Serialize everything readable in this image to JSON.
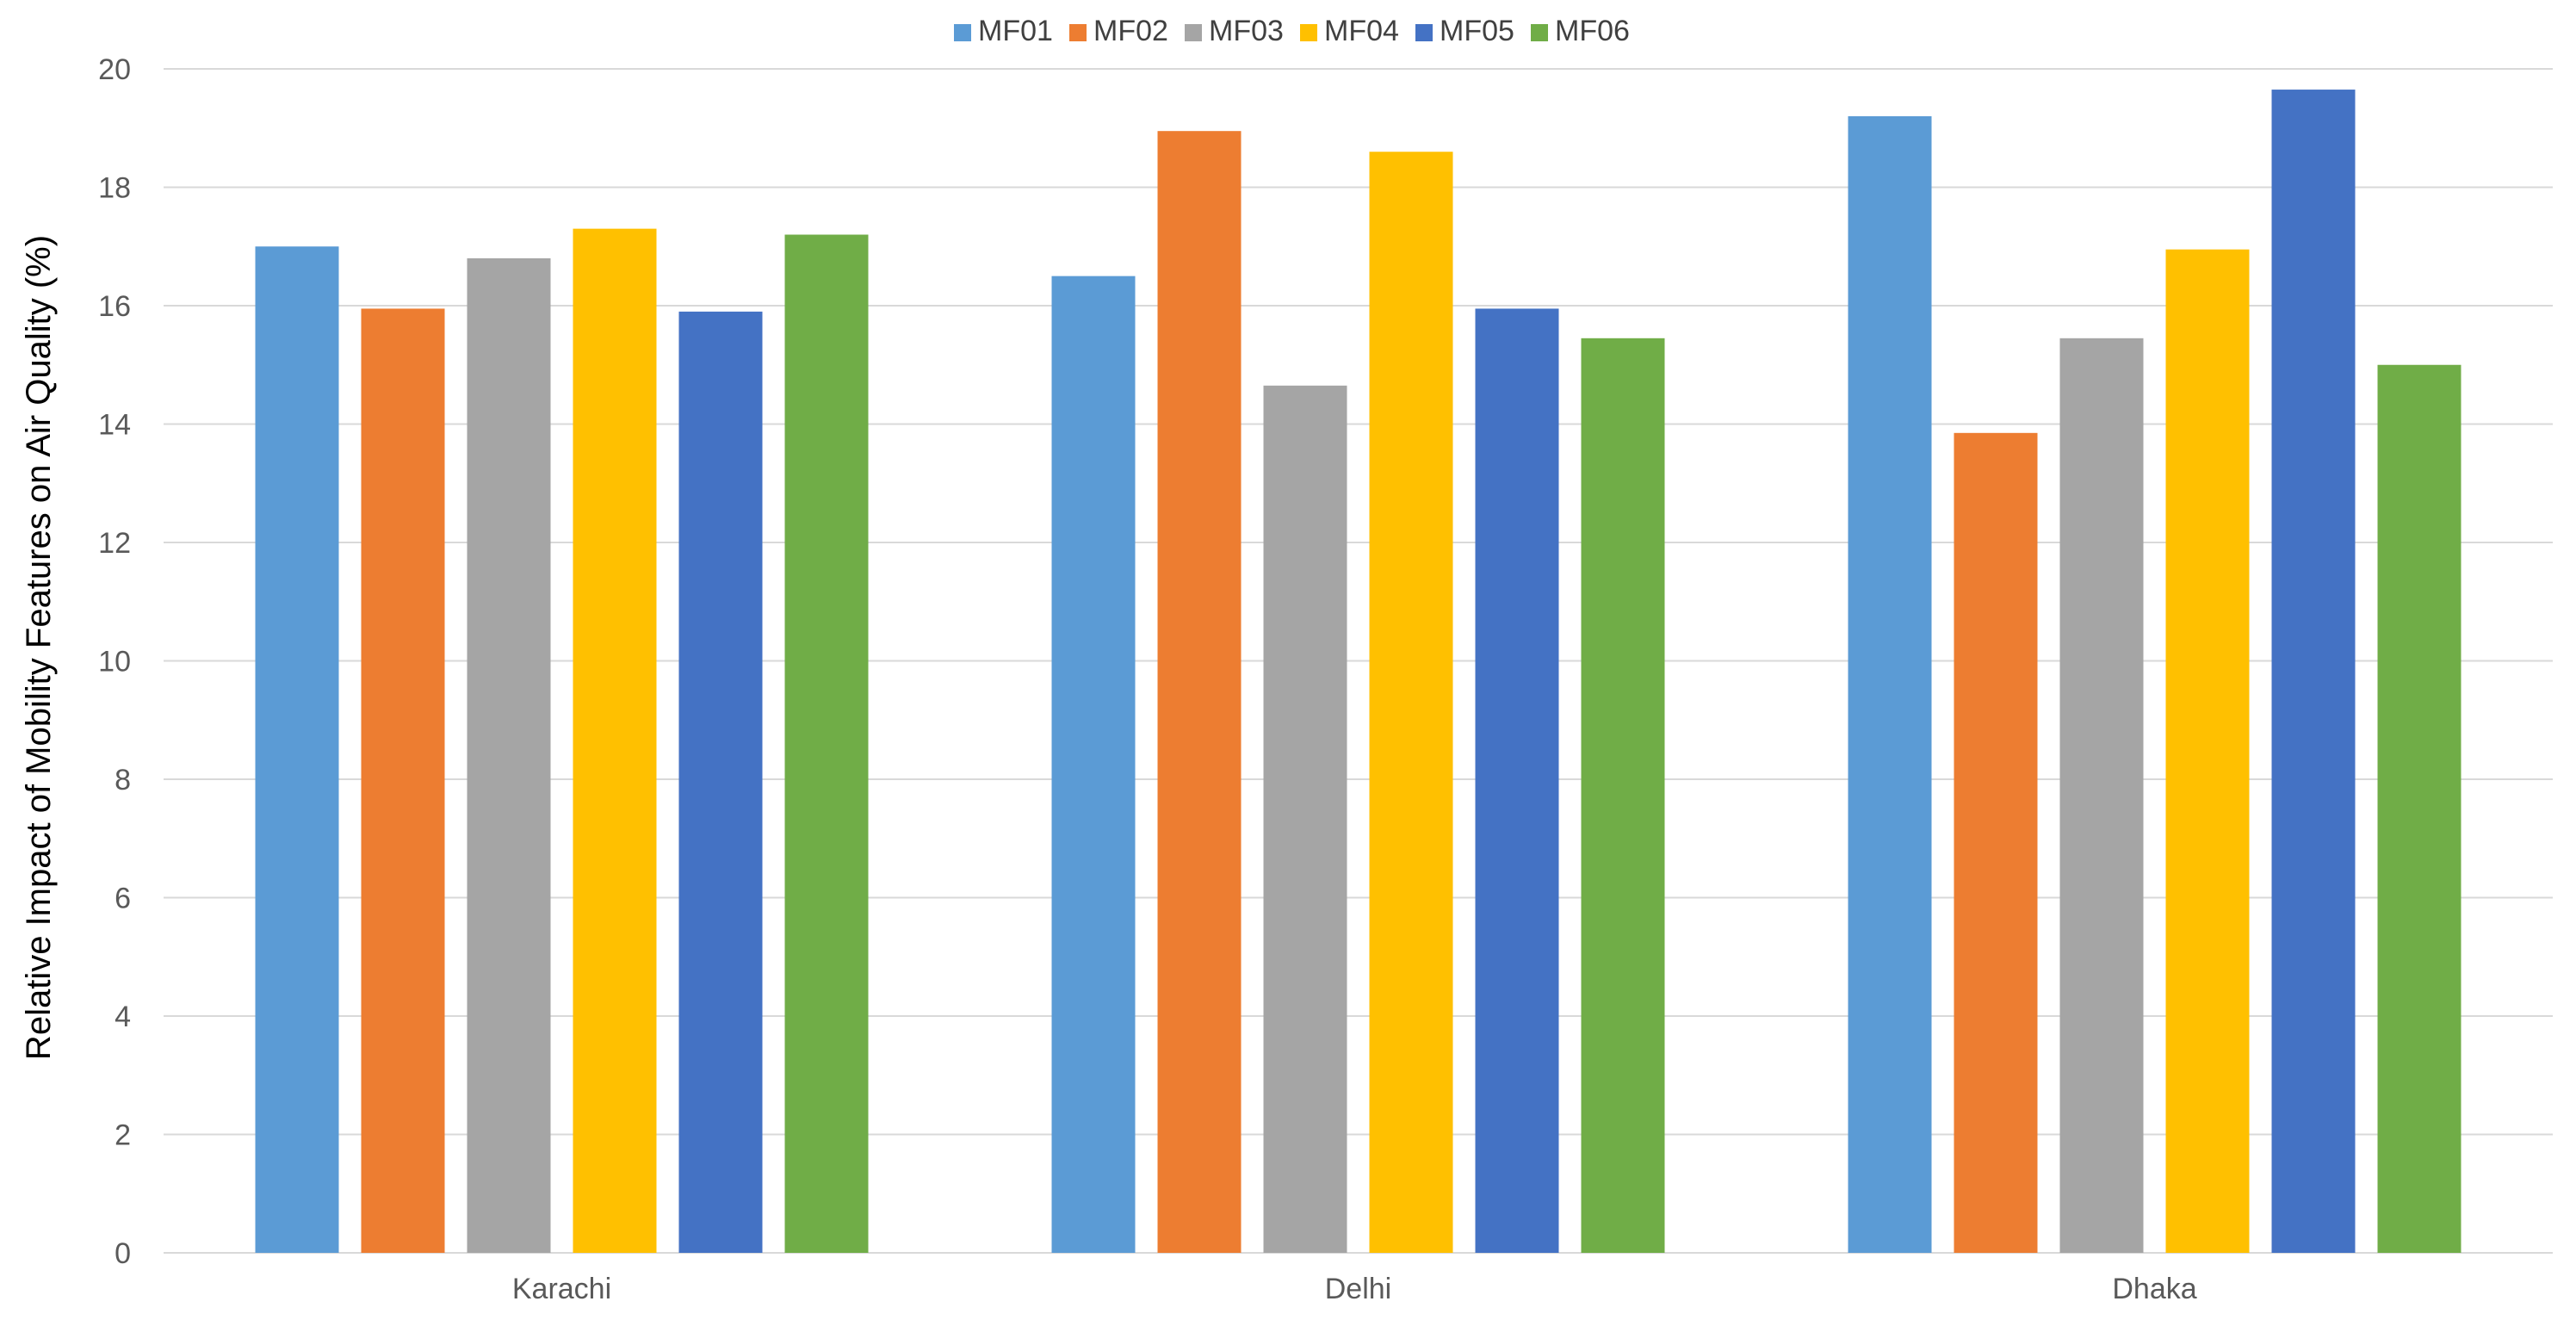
{
  "chart_data": {
    "type": "bar",
    "title": "",
    "xlabel": "",
    "ylabel": "Relative Impact of Mobility Features on Air Quality (%)",
    "categories": [
      "Karachi",
      "Delhi",
      "Dhaka"
    ],
    "ylim": [
      0,
      20
    ],
    "yticks": [
      0,
      2,
      4,
      6,
      8,
      10,
      12,
      14,
      16,
      18,
      20
    ],
    "grid": true,
    "legend_position": "top",
    "series": [
      {
        "name": "MF01",
        "color": "#5b9bd5",
        "values": [
          17.0,
          16.5,
          19.2
        ]
      },
      {
        "name": "MF02",
        "color": "#ed7d31",
        "values": [
          15.95,
          18.95,
          13.85
        ]
      },
      {
        "name": "MF03",
        "color": "#a5a5a5",
        "values": [
          16.8,
          14.65,
          15.45
        ]
      },
      {
        "name": "MF04",
        "color": "#ffc000",
        "values": [
          17.3,
          18.6,
          16.95
        ]
      },
      {
        "name": "MF05",
        "color": "#4472c4",
        "values": [
          15.9,
          15.95,
          19.65
        ]
      },
      {
        "name": "MF06",
        "color": "#70ad47",
        "values": [
          17.2,
          15.45,
          15.0
        ]
      }
    ]
  }
}
